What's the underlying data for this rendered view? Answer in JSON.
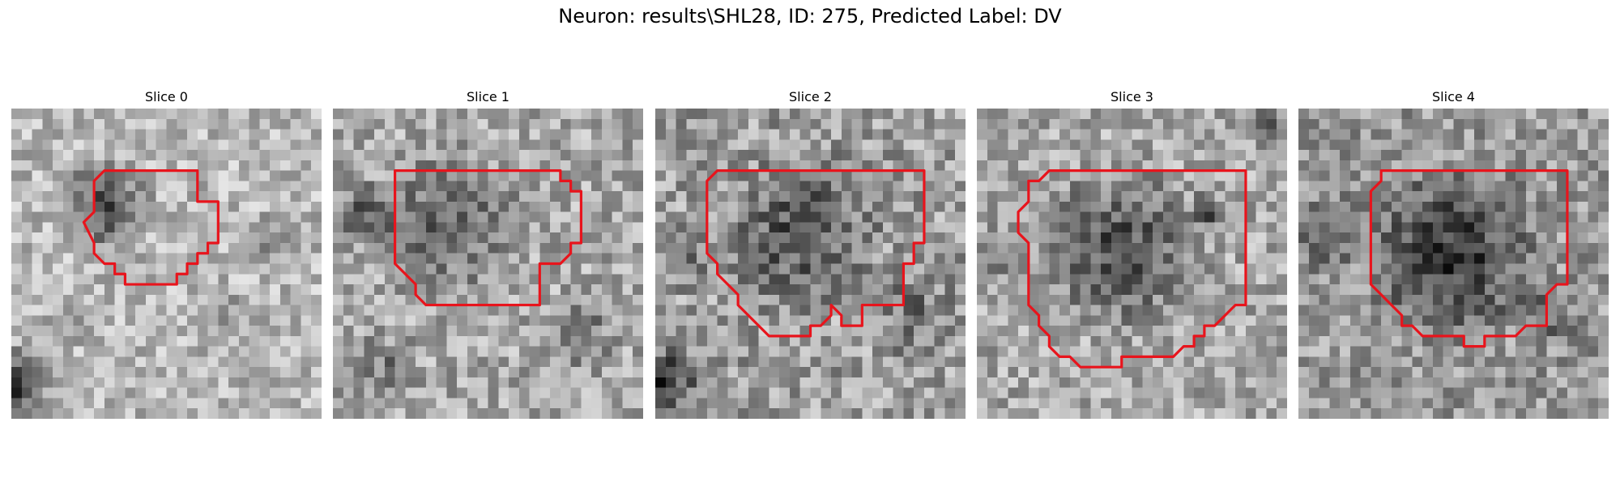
{
  "figure": {
    "title": "Neuron: results\\SHL28, ID: 275, Predicted Label: DV"
  },
  "panels": [
    {
      "title": "Slice 0",
      "outline_color": "#e8141c",
      "bg_seed": 11,
      "base": 0.72,
      "bg_variance": 0.18,
      "dark_blobs": [
        {
          "cx": 9.0,
          "cy": 9.5,
          "r": 5.5,
          "strength": 0.45
        },
        {
          "cx": 0.5,
          "cy": 26.5,
          "r": 4.0,
          "strength": 0.6
        },
        {
          "cx": 5.0,
          "cy": 21.0,
          "r": 3.0,
          "strength": 0.2
        },
        {
          "cx": 24.5,
          "cy": 12.0,
          "r": 2.5,
          "strength": 0.25
        },
        {
          "cx": 20.0,
          "cy": 20.0,
          "r": 4.0,
          "strength": 0.15
        }
      ],
      "outline": [
        [
          9,
          6
        ],
        [
          18,
          6
        ],
        [
          18,
          9
        ],
        [
          20,
          9
        ],
        [
          20,
          13
        ],
        [
          19,
          13
        ],
        [
          19,
          14
        ],
        [
          18,
          14
        ],
        [
          18,
          15
        ],
        [
          17,
          15
        ],
        [
          17,
          16
        ],
        [
          16,
          16
        ],
        [
          16,
          17
        ],
        [
          11,
          17
        ],
        [
          11,
          16
        ],
        [
          10,
          16
        ],
        [
          10,
          15
        ],
        [
          9,
          15
        ],
        [
          8,
          14
        ],
        [
          8,
          13
        ],
        [
          7,
          11
        ],
        [
          8,
          10
        ],
        [
          8,
          7
        ]
      ]
    },
    {
      "title": "Slice 1",
      "outline_color": "#e8141c",
      "bg_seed": 23,
      "base": 0.66,
      "bg_variance": 0.2,
      "dark_blobs": [
        {
          "cx": 11.0,
          "cy": 11.0,
          "r": 8.5,
          "strength": 0.3
        },
        {
          "cx": 3.0,
          "cy": 10.0,
          "r": 4.0,
          "strength": 0.3
        },
        {
          "cx": 5.0,
          "cy": 25.0,
          "r": 4.0,
          "strength": 0.2
        },
        {
          "cx": 24.0,
          "cy": 22.0,
          "r": 4.0,
          "strength": 0.25
        }
      ],
      "outline": [
        [
          6,
          6
        ],
        [
          22,
          6
        ],
        [
          22,
          7
        ],
        [
          23,
          7
        ],
        [
          23,
          8
        ],
        [
          24,
          8
        ],
        [
          24,
          13
        ],
        [
          23,
          13
        ],
        [
          23,
          14
        ],
        [
          22,
          15
        ],
        [
          21,
          15
        ],
        [
          20,
          15
        ],
        [
          20,
          19
        ],
        [
          10,
          19
        ],
        [
          9,
          19
        ],
        [
          8,
          18
        ],
        [
          8,
          17
        ],
        [
          7,
          16
        ],
        [
          6,
          15
        ],
        [
          6,
          14
        ],
        [
          6,
          7
        ]
      ]
    },
    {
      "title": "Slice 2",
      "outline_color": "#e8141c",
      "bg_seed": 37,
      "base": 0.62,
      "bg_variance": 0.22,
      "dark_blobs": [
        {
          "cx": 14.0,
          "cy": 12.0,
          "r": 9.0,
          "strength": 0.35
        },
        {
          "cx": 1.0,
          "cy": 26.0,
          "r": 4.0,
          "strength": 0.45
        },
        {
          "cx": 3.0,
          "cy": 14.0,
          "r": 4.0,
          "strength": 0.2
        },
        {
          "cx": 25.0,
          "cy": 20.0,
          "r": 5.0,
          "strength": 0.2
        }
      ],
      "outline": [
        [
          6,
          6
        ],
        [
          26,
          6
        ],
        [
          26,
          13
        ],
        [
          25,
          13
        ],
        [
          25,
          15
        ],
        [
          24,
          15
        ],
        [
          24,
          19
        ],
        [
          20,
          19
        ],
        [
          20,
          21
        ],
        [
          19,
          21
        ],
        [
          18,
          21
        ],
        [
          18,
          20
        ],
        [
          17,
          19
        ],
        [
          17,
          20
        ],
        [
          16,
          21
        ],
        [
          15,
          21
        ],
        [
          15,
          22
        ],
        [
          12,
          22
        ],
        [
          11,
          22
        ],
        [
          10,
          21
        ],
        [
          9,
          20
        ],
        [
          8,
          19
        ],
        [
          8,
          18
        ],
        [
          7,
          17
        ],
        [
          6,
          16
        ],
        [
          6,
          15
        ],
        [
          5,
          14
        ],
        [
          5,
          12
        ],
        [
          5,
          9
        ],
        [
          5,
          7
        ]
      ]
    },
    {
      "title": "Slice 3",
      "outline_color": "#e8141c",
      "bg_seed": 53,
      "base": 0.66,
      "bg_variance": 0.2,
      "dark_blobs": [
        {
          "cx": 14.0,
          "cy": 13.5,
          "r": 9.5,
          "strength": 0.4
        },
        {
          "cx": 22.5,
          "cy": 10.0,
          "r": 2.2,
          "strength": 0.35
        },
        {
          "cx": 28.0,
          "cy": 1.5,
          "r": 2.5,
          "strength": 0.35
        },
        {
          "cx": 2.0,
          "cy": 14.0,
          "r": 3.5,
          "strength": 0.2
        }
      ],
      "outline": [
        [
          7,
          6
        ],
        [
          26,
          6
        ],
        [
          26,
          19
        ],
        [
          25,
          19
        ],
        [
          24,
          20
        ],
        [
          23,
          21
        ],
        [
          22,
          21
        ],
        [
          22,
          22
        ],
        [
          21,
          22
        ],
        [
          21,
          23
        ],
        [
          20,
          23
        ],
        [
          19,
          24
        ],
        [
          15,
          24
        ],
        [
          14,
          24
        ],
        [
          14,
          25
        ],
        [
          13,
          25
        ],
        [
          10,
          25
        ],
        [
          9,
          24
        ],
        [
          8,
          24
        ],
        [
          7,
          23
        ],
        [
          7,
          22
        ],
        [
          6,
          21
        ],
        [
          6,
          20
        ],
        [
          5,
          19
        ],
        [
          5,
          18
        ],
        [
          5,
          14
        ],
        [
          5,
          13
        ],
        [
          4,
          12
        ],
        [
          4,
          10
        ],
        [
          5,
          9
        ],
        [
          5,
          7
        ],
        [
          6,
          7
        ]
      ]
    },
    {
      "title": "Slice 4",
      "outline_color": "#e8141c",
      "bg_seed": 71,
      "base": 0.6,
      "bg_variance": 0.2,
      "dark_blobs": [
        {
          "cx": 15.0,
          "cy": 14.0,
          "r": 10.0,
          "strength": 0.45
        },
        {
          "cx": 3.0,
          "cy": 12.0,
          "r": 4.5,
          "strength": 0.3
        },
        {
          "cx": 24.0,
          "cy": 20.0,
          "r": 4.0,
          "strength": 0.2
        }
      ],
      "outline": [
        [
          8,
          6
        ],
        [
          26,
          6
        ],
        [
          26,
          7
        ],
        [
          26,
          17
        ],
        [
          25,
          17
        ],
        [
          24,
          18
        ],
        [
          24,
          21
        ],
        [
          22,
          21
        ],
        [
          21,
          22
        ],
        [
          20,
          22
        ],
        [
          19,
          22
        ],
        [
          18,
          22
        ],
        [
          18,
          23
        ],
        [
          17,
          23
        ],
        [
          16,
          23
        ],
        [
          16,
          22
        ],
        [
          14,
          22
        ],
        [
          13,
          22
        ],
        [
          12,
          22
        ],
        [
          11,
          21
        ],
        [
          10,
          21
        ],
        [
          10,
          20
        ],
        [
          9,
          19
        ],
        [
          8,
          18
        ],
        [
          7,
          17
        ],
        [
          7,
          15
        ],
        [
          7,
          14
        ],
        [
          7,
          10
        ],
        [
          7,
          8
        ],
        [
          8,
          7
        ]
      ]
    }
  ]
}
